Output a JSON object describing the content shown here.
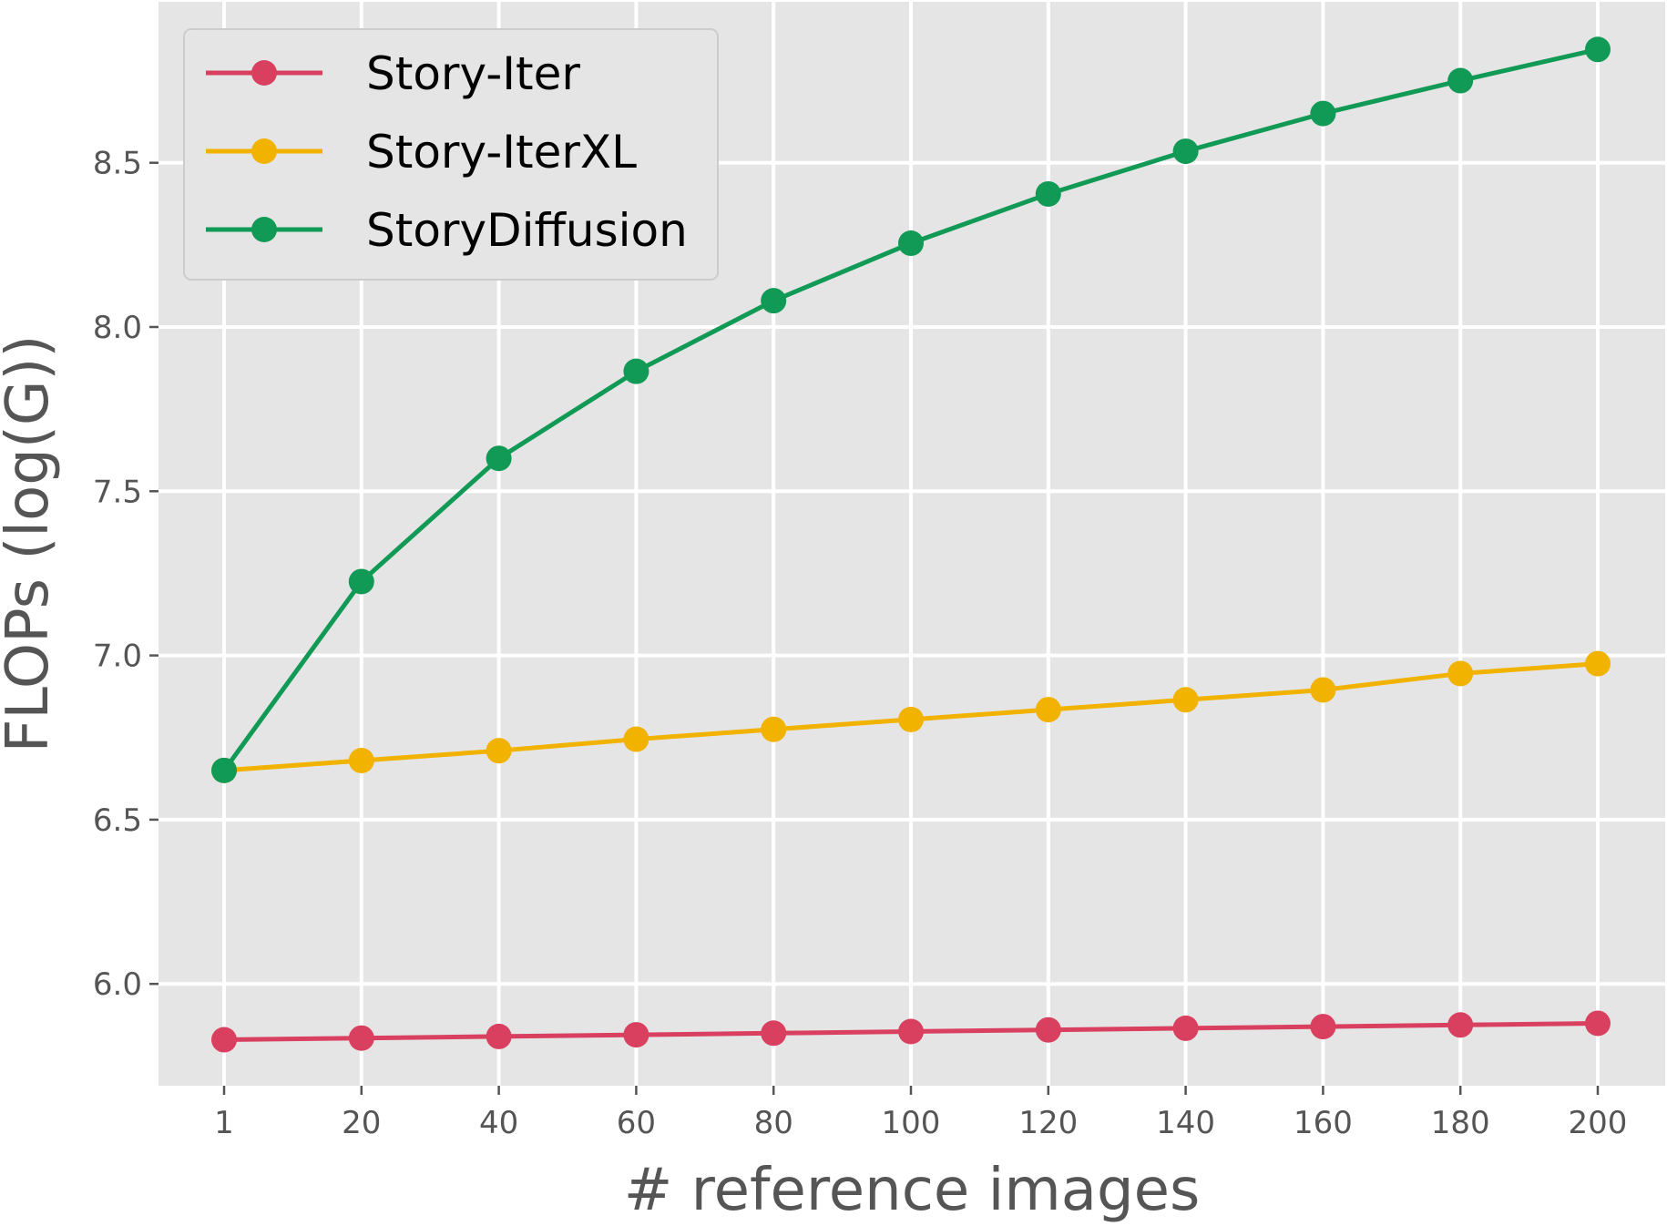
{
  "chart_data": {
    "type": "line",
    "title": "",
    "xlabel": "# reference images",
    "ylabel": "FLOPs (log(G))",
    "x": [
      1,
      20,
      40,
      60,
      80,
      100,
      120,
      140,
      160,
      180,
      200
    ],
    "x_tick_labels": [
      "1",
      "20",
      "40",
      "60",
      "80",
      "100",
      "120",
      "140",
      "160",
      "180",
      "200"
    ],
    "y_ticks": [
      6.0,
      6.5,
      7.0,
      7.5,
      8.0,
      8.5
    ],
    "y_tick_labels": [
      "6.0",
      "6.5",
      "7.0",
      "7.5",
      "8.0",
      "8.5"
    ],
    "ylim": [
      5.69,
      8.99
    ],
    "grid": true,
    "legend_position": "top-left",
    "series": [
      {
        "name": "Story-Iter",
        "color": "#d9405f",
        "values": [
          5.83,
          5.835,
          5.84,
          5.845,
          5.85,
          5.855,
          5.86,
          5.865,
          5.87,
          5.875,
          5.88
        ]
      },
      {
        "name": "Story-IterXL",
        "color": "#f2b200",
        "values": [
          6.65,
          6.68,
          6.71,
          6.745,
          6.775,
          6.805,
          6.835,
          6.865,
          6.895,
          6.945,
          6.975
        ]
      },
      {
        "name": "StoryDiffusion",
        "color": "#109a55",
        "values": [
          6.65,
          7.225,
          7.6,
          7.865,
          8.08,
          8.255,
          8.405,
          8.535,
          8.65,
          8.75,
          8.845
        ]
      }
    ]
  }
}
